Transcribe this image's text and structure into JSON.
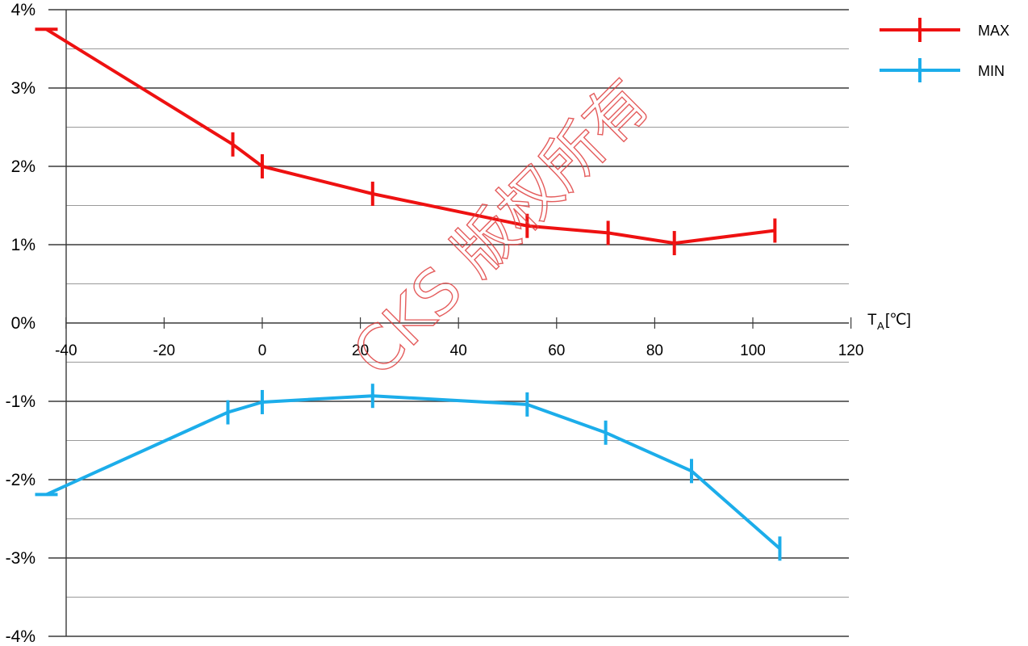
{
  "chart_data": {
    "type": "line",
    "xlabel": {
      "main": "T",
      "sub": "A",
      "unit": "[℃]"
    },
    "xlim": [
      -45,
      120
    ],
    "ylim": [
      -4,
      4
    ],
    "x_ticks": [
      -40,
      -20,
      0,
      20,
      40,
      60,
      80,
      100,
      120
    ],
    "y_ticks": [
      4,
      3,
      2,
      1,
      0,
      -1,
      -2,
      -3,
      -4
    ],
    "y_tick_labels": [
      "4%",
      "3%",
      "2%",
      "1%",
      "0%",
      "-1%",
      "-2%",
      "-3%",
      "-4%"
    ],
    "grid": "horizontal",
    "legend_position": "top-right",
    "series": [
      {
        "name": "MAX",
        "color": "#ee1111",
        "points": [
          {
            "x": -44,
            "y": 3.75
          },
          {
            "x": -6,
            "y": 2.28
          },
          {
            "x": 0,
            "y": 2.0
          },
          {
            "x": 22.5,
            "y": 1.65
          },
          {
            "x": 54,
            "y": 1.24
          },
          {
            "x": 70.5,
            "y": 1.15
          },
          {
            "x": 84,
            "y": 1.02
          },
          {
            "x": 104.5,
            "y": 1.18
          }
        ]
      },
      {
        "name": "MIN",
        "color": "#1cadea",
        "points": [
          {
            "x": -44,
            "y": -2.19
          },
          {
            "x": -7,
            "y": -1.14
          },
          {
            "x": 0,
            "y": -1.01
          },
          {
            "x": 22.5,
            "y": -0.93
          },
          {
            "x": 54,
            "y": -1.04
          },
          {
            "x": 70,
            "y": -1.4
          },
          {
            "x": 87.5,
            "y": -1.89
          },
          {
            "x": 105.5,
            "y": -2.88
          }
        ]
      }
    ]
  },
  "watermark": "CKS 版权所有"
}
